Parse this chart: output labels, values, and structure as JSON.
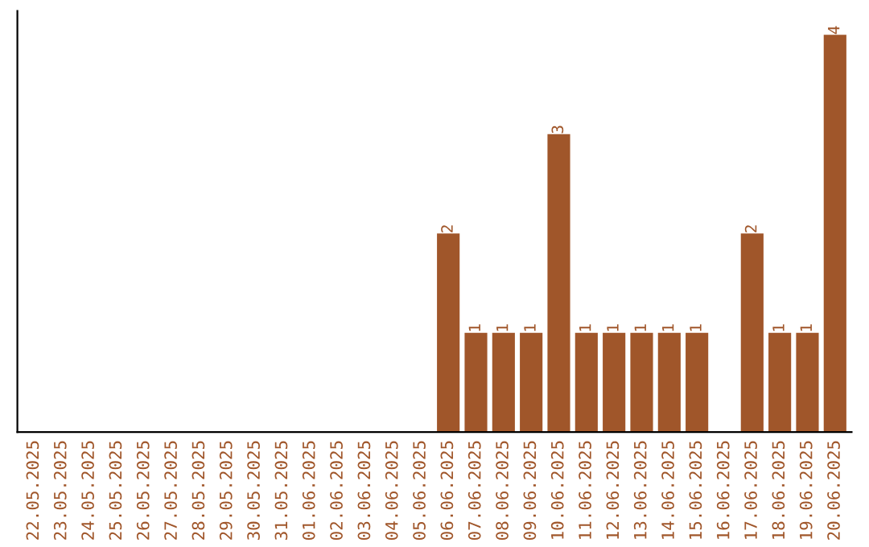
{
  "chart_data": {
    "type": "bar",
    "categories": [
      "22.05.2025",
      "23.05.2025",
      "24.05.2025",
      "25.05.2025",
      "26.05.2025",
      "27.05.2025",
      "28.05.2025",
      "29.05.2025",
      "30.05.2025",
      "31.05.2025",
      "01.06.2025",
      "02.06.2025",
      "03.06.2025",
      "04.06.2025",
      "05.06.2025",
      "06.06.2025",
      "07.06.2025",
      "08.06.2025",
      "09.06.2025",
      "10.06.2025",
      "11.06.2025",
      "12.06.2025",
      "13.06.2025",
      "14.06.2025",
      "15.06.2025",
      "16.06.2025",
      "17.06.2025",
      "18.06.2025",
      "19.06.2025",
      "20.06.2025"
    ],
    "values": [
      null,
      null,
      null,
      null,
      null,
      null,
      null,
      null,
      null,
      null,
      null,
      null,
      null,
      null,
      null,
      2,
      1,
      1,
      1,
      3,
      1,
      1,
      1,
      1,
      1,
      null,
      2,
      1,
      1,
      4
    ],
    "value_labels": [
      null,
      null,
      null,
      null,
      null,
      null,
      null,
      null,
      null,
      null,
      null,
      null,
      null,
      null,
      null,
      "2",
      "1",
      "1",
      "1",
      "3",
      "1",
      "1",
      "1",
      "1",
      "1",
      null,
      "2",
      "1",
      "1",
      "4"
    ],
    "color": "#a0562a",
    "tick_labels": "x",
    "grid": false,
    "legend": false
  }
}
